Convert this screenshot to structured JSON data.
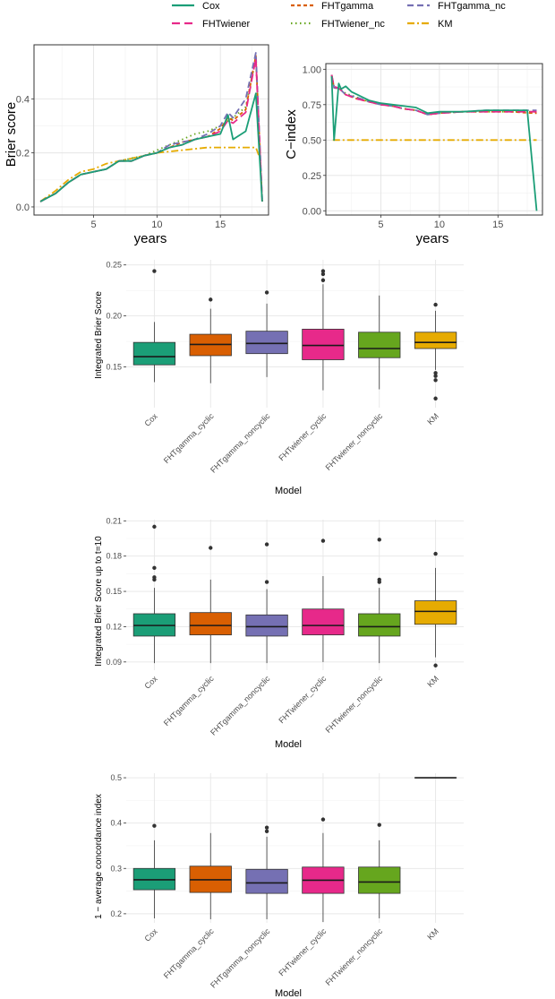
{
  "colors": {
    "Cox": "#1b9e77",
    "FHTgamma": "#d95f02",
    "FHTgamma_nc": "#7570b3",
    "FHTwiener": "#e7298a",
    "FHTwiener_nc": "#66a61e",
    "KM": "#e6ab02"
  },
  "legend": {
    "items": [
      {
        "key": "Cox",
        "label": "Cox",
        "dash": ""
      },
      {
        "key": "FHTgamma",
        "label": "FHTgamma",
        "dash": "4 3"
      },
      {
        "key": "FHTgamma_nc",
        "label": "FHTgamma_nc",
        "dash": "7 4"
      },
      {
        "key": "FHTwiener",
        "label": "FHTwiener",
        "dash": "9 5"
      },
      {
        "key": "FHTwiener_nc",
        "label": "FHTwiener_nc",
        "dash": "1.5 3.5"
      },
      {
        "key": "KM",
        "label": "KM",
        "dash": "8 3 2 3"
      }
    ]
  },
  "chart_data": [
    {
      "id": "brier",
      "type": "line",
      "xlabel": "years",
      "ylabel": "Brier score",
      "xlim": [
        0.3,
        18.8
      ],
      "ylim": [
        -0.03,
        0.6
      ],
      "xticks": [
        5,
        10,
        15
      ],
      "yticks": [
        0.0,
        0.2,
        0.4
      ],
      "ytick_labels": [
        "0.0",
        "0.2",
        "0.4"
      ],
      "series": [
        {
          "name": "KM",
          "x": [
            0.8,
            2,
            3,
            4,
            5,
            6,
            8,
            10,
            12,
            14,
            16,
            17,
            17.8,
            18.2
          ],
          "y": [
            0.02,
            0.06,
            0.1,
            0.13,
            0.14,
            0.16,
            0.18,
            0.2,
            0.21,
            0.22,
            0.22,
            0.22,
            0.22,
            0.17
          ]
        },
        {
          "name": "FHTwiener_nc",
          "x": [
            0.8,
            2,
            3,
            4,
            5,
            6,
            7,
            8,
            9,
            10,
            11,
            12,
            13,
            14,
            15,
            16,
            17,
            17.8,
            18.3
          ],
          "y": [
            0.02,
            0.05,
            0.09,
            0.12,
            0.13,
            0.14,
            0.17,
            0.18,
            0.19,
            0.21,
            0.23,
            0.25,
            0.27,
            0.28,
            0.3,
            0.33,
            0.37,
            0.55,
            0.02
          ]
        },
        {
          "name": "FHTgamma",
          "x": [
            0.8,
            2,
            3,
            4,
            5,
            6,
            7,
            8,
            9,
            10,
            11,
            12,
            13,
            14,
            15,
            15.6,
            16,
            17,
            17.8,
            18.3
          ],
          "y": [
            0.02,
            0.05,
            0.09,
            0.12,
            0.13,
            0.14,
            0.17,
            0.17,
            0.19,
            0.2,
            0.22,
            0.24,
            0.25,
            0.26,
            0.29,
            0.33,
            0.32,
            0.36,
            0.56,
            0.02
          ]
        },
        {
          "name": "FHTgamma_nc",
          "x": [
            0.8,
            2,
            3,
            4,
            5,
            6,
            7,
            8,
            9,
            10,
            11,
            12,
            13,
            14,
            15,
            15.6,
            16,
            17,
            17.8,
            18.3
          ],
          "y": [
            0.02,
            0.05,
            0.09,
            0.12,
            0.13,
            0.14,
            0.17,
            0.17,
            0.19,
            0.2,
            0.23,
            0.24,
            0.25,
            0.27,
            0.3,
            0.35,
            0.33,
            0.4,
            0.57,
            0.03
          ]
        },
        {
          "name": "FHTwiener",
          "x": [
            0.8,
            2,
            3,
            4,
            5,
            6,
            7,
            8,
            9,
            10,
            11,
            12,
            13,
            14,
            15,
            15.6,
            16,
            17,
            17.8,
            18.3
          ],
          "y": [
            0.02,
            0.05,
            0.09,
            0.12,
            0.13,
            0.14,
            0.17,
            0.17,
            0.19,
            0.2,
            0.22,
            0.23,
            0.25,
            0.26,
            0.28,
            0.32,
            0.31,
            0.35,
            0.55,
            0.02
          ]
        },
        {
          "name": "Cox",
          "x": [
            0.8,
            2,
            3,
            4,
            5,
            6,
            7,
            8,
            9,
            10,
            11,
            12,
            13,
            14,
            15,
            15.6,
            16,
            17,
            17.8,
            18.3
          ],
          "y": [
            0.02,
            0.05,
            0.09,
            0.12,
            0.13,
            0.14,
            0.17,
            0.17,
            0.19,
            0.2,
            0.22,
            0.23,
            0.25,
            0.26,
            0.27,
            0.34,
            0.25,
            0.28,
            0.42,
            0.02
          ]
        }
      ]
    },
    {
      "id": "cindex",
      "type": "line",
      "xlabel": "years",
      "ylabel": "C−index",
      "xlim": [
        0.3,
        18.8
      ],
      "ylim": [
        -0.03,
        1.04
      ],
      "xticks": [
        5,
        10,
        15
      ],
      "yticks": [
        0.0,
        0.25,
        0.5,
        0.75,
        1.0
      ],
      "ytick_labels": [
        "0.00",
        "0.25",
        "0.50",
        "0.75",
        "1.00"
      ],
      "series": [
        {
          "name": "KM",
          "x": [
            0.9,
            18.3
          ],
          "y": [
            0.5,
            0.5
          ]
        },
        {
          "name": "FHTwiener_nc",
          "x": [
            0.8,
            1,
            1.5,
            2,
            3,
            4,
            5,
            6,
            7,
            8,
            9,
            10,
            12,
            14,
            16,
            18,
            18.3
          ],
          "y": [
            0.95,
            0.88,
            0.86,
            0.83,
            0.8,
            0.77,
            0.75,
            0.74,
            0.72,
            0.71,
            0.68,
            0.69,
            0.7,
            0.7,
            0.7,
            0.7,
            0.7
          ]
        },
        {
          "name": "FHTgamma",
          "x": [
            0.8,
            1,
            1.5,
            2,
            3,
            4,
            5,
            6,
            7,
            8,
            9,
            10,
            12,
            14,
            16,
            18,
            18.3
          ],
          "y": [
            0.96,
            0.87,
            0.86,
            0.82,
            0.79,
            0.77,
            0.75,
            0.74,
            0.72,
            0.71,
            0.68,
            0.69,
            0.7,
            0.7,
            0.7,
            0.69,
            0.69
          ]
        },
        {
          "name": "FHTgamma_nc",
          "x": [
            0.8,
            1,
            1.5,
            2,
            3,
            4,
            5,
            6,
            7,
            8,
            9,
            10,
            12,
            14,
            16,
            18,
            18.3
          ],
          "y": [
            0.96,
            0.87,
            0.86,
            0.82,
            0.8,
            0.77,
            0.75,
            0.74,
            0.72,
            0.71,
            0.68,
            0.69,
            0.7,
            0.71,
            0.71,
            0.71,
            0.71
          ]
        },
        {
          "name": "FHTwiener",
          "x": [
            0.8,
            1,
            1.5,
            2,
            3,
            4,
            5,
            6,
            7,
            8,
            9,
            10,
            12,
            14,
            16,
            18,
            18.3
          ],
          "y": [
            0.96,
            0.88,
            0.86,
            0.82,
            0.79,
            0.77,
            0.75,
            0.74,
            0.72,
            0.71,
            0.68,
            0.69,
            0.7,
            0.7,
            0.7,
            0.7,
            0.7
          ]
        },
        {
          "name": "Cox",
          "x": [
            0.8,
            1,
            1.4,
            1.6,
            2,
            2.5,
            3,
            3.5,
            4,
            5,
            6,
            7,
            8,
            9,
            10,
            12,
            14,
            16,
            17.5,
            18.3
          ],
          "y": [
            0.95,
            0.5,
            0.9,
            0.86,
            0.88,
            0.84,
            0.82,
            0.8,
            0.78,
            0.76,
            0.75,
            0.74,
            0.73,
            0.69,
            0.7,
            0.7,
            0.71,
            0.71,
            0.71,
            0.0
          ]
        }
      ]
    },
    {
      "id": "ibs",
      "type": "box",
      "title": "",
      "xlabel": "Model",
      "ylabel": "Integrated Brier Score",
      "ylim": [
        0.11,
        0.255
      ],
      "yticks": [
        0.15,
        0.2,
        0.25
      ],
      "ytick_labels": [
        "0.15",
        "0.20",
        "0.25"
      ],
      "categories": [
        "Cox",
        "FHTgamma_cyclic",
        "FHTgamma_noncyclic",
        "FHTwiener_cyclic",
        "FHTwiener_noncyclic",
        "KM"
      ],
      "color_keys": [
        "Cox",
        "FHTgamma",
        "FHTgamma_nc",
        "FHTwiener",
        "FHTwiener_nc",
        "KM"
      ],
      "boxes": [
        {
          "min": 0.135,
          "q1": 0.152,
          "median": 0.16,
          "q3": 0.174,
          "max": 0.194,
          "outliers": [
            0.244
          ]
        },
        {
          "min": 0.134,
          "q1": 0.161,
          "median": 0.172,
          "q3": 0.182,
          "max": 0.207,
          "outliers": [
            0.216
          ]
        },
        {
          "min": 0.14,
          "q1": 0.163,
          "median": 0.173,
          "q3": 0.185,
          "max": 0.212,
          "outliers": [
            0.223
          ]
        },
        {
          "min": 0.127,
          "q1": 0.157,
          "median": 0.171,
          "q3": 0.187,
          "max": 0.231,
          "outliers": [
            0.235,
            0.241,
            0.244
          ]
        },
        {
          "min": 0.128,
          "q1": 0.159,
          "median": 0.168,
          "q3": 0.184,
          "max": 0.22,
          "outliers": []
        },
        {
          "min": 0.147,
          "q1": 0.168,
          "median": 0.174,
          "q3": 0.184,
          "max": 0.205,
          "outliers": [
            0.211,
            0.144,
            0.141,
            0.137,
            0.119
          ]
        }
      ]
    },
    {
      "id": "ibs10",
      "type": "box",
      "xlabel": "Model",
      "ylabel": "Integrated Brier Score up to t=10",
      "ylim": [
        0.083,
        0.211
      ],
      "yticks": [
        0.09,
        0.12,
        0.15,
        0.18,
        0.21
      ],
      "ytick_labels": [
        "0.09",
        "0.12",
        "0.15",
        "0.18",
        "0.21"
      ],
      "categories": [
        "Cox",
        "FHTgamma_cyclic",
        "FHTgamma_noncyclic",
        "FHTwiener_cyclic",
        "FHTwiener_noncyclic",
        "KM"
      ],
      "color_keys": [
        "Cox",
        "FHTgamma",
        "FHTgamma_nc",
        "FHTwiener",
        "FHTwiener_nc",
        "KM"
      ],
      "boxes": [
        {
          "min": 0.089,
          "q1": 0.112,
          "median": 0.121,
          "q3": 0.131,
          "max": 0.153,
          "outliers": [
            0.205,
            0.17,
            0.162,
            0.16
          ]
        },
        {
          "min": 0.089,
          "q1": 0.113,
          "median": 0.121,
          "q3": 0.132,
          "max": 0.16,
          "outliers": [
            0.187
          ]
        },
        {
          "min": 0.089,
          "q1": 0.112,
          "median": 0.12,
          "q3": 0.13,
          "max": 0.152,
          "outliers": [
            0.19,
            0.158
          ]
        },
        {
          "min": 0.09,
          "q1": 0.113,
          "median": 0.121,
          "q3": 0.135,
          "max": 0.163,
          "outliers": [
            0.193
          ]
        },
        {
          "min": 0.089,
          "q1": 0.112,
          "median": 0.12,
          "q3": 0.131,
          "max": 0.153,
          "outliers": [
            0.194,
            0.16,
            0.158
          ]
        },
        {
          "min": 0.094,
          "q1": 0.122,
          "median": 0.133,
          "q3": 0.142,
          "max": 0.17,
          "outliers": [
            0.182,
            0.087
          ]
        }
      ]
    },
    {
      "id": "cindex_avg",
      "type": "box",
      "xlabel": "Model",
      "ylabel": "1 − average concordance index",
      "ylim": [
        0.18,
        0.51
      ],
      "yticks": [
        0.2,
        0.3,
        0.4,
        0.5
      ],
      "ytick_labels": [
        "0.2",
        "0.3",
        "0.4",
        "0.5"
      ],
      "categories": [
        "Cox",
        "FHTgamma_cyclic",
        "FHTgamma_noncyclic",
        "FHTwiener_cyclic",
        "FHTwiener_noncyclic",
        "KM"
      ],
      "color_keys": [
        "Cox",
        "FHTgamma",
        "FHTgamma_nc",
        "FHTwiener",
        "FHTwiener_nc",
        "KM"
      ],
      "boxes": [
        {
          "min": 0.19,
          "q1": 0.253,
          "median": 0.275,
          "q3": 0.3,
          "max": 0.362,
          "outliers": [
            0.394
          ]
        },
        {
          "min": 0.188,
          "q1": 0.247,
          "median": 0.275,
          "q3": 0.305,
          "max": 0.378,
          "outliers": []
        },
        {
          "min": 0.188,
          "q1": 0.245,
          "median": 0.268,
          "q3": 0.298,
          "max": 0.37,
          "outliers": [
            0.39,
            0.382
          ]
        },
        {
          "min": 0.182,
          "q1": 0.245,
          "median": 0.274,
          "q3": 0.303,
          "max": 0.378,
          "outliers": [
            0.408
          ]
        },
        {
          "min": 0.19,
          "q1": 0.245,
          "median": 0.27,
          "q3": 0.303,
          "max": 0.362,
          "outliers": [
            0.396
          ]
        },
        {
          "min": 0.5,
          "q1": 0.5,
          "median": 0.5,
          "q3": 0.5,
          "max": 0.5,
          "outliers": []
        }
      ]
    }
  ]
}
